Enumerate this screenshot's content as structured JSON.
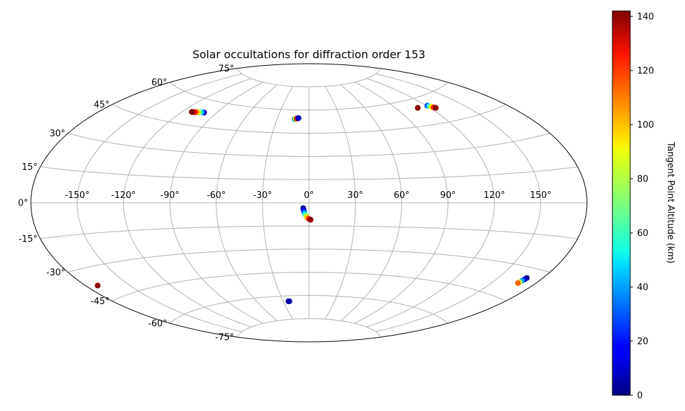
{
  "chart_data": {
    "type": "scatter",
    "projection": "aitoff",
    "title": "Solar occultations for diffraction order 153",
    "grid": true,
    "longitude_ticks": [
      -150,
      -120,
      -90,
      -60,
      -30,
      0,
      30,
      60,
      90,
      120,
      150
    ],
    "longitude_tick_labels": [
      "-150°",
      "-120°",
      "-90°",
      "-60°",
      "-30°",
      "0°",
      "30°",
      "60°",
      "90°",
      "120°",
      "150°"
    ],
    "latitude_ticks": [
      75,
      60,
      45,
      30,
      15,
      0,
      -15,
      -30,
      -45,
      -60,
      -75
    ],
    "latitude_tick_labels": [
      "75°",
      "60°",
      "45°",
      "30°",
      "15°",
      "0°",
      "-15°",
      "-30°",
      "-45°",
      "-60°",
      "-75°"
    ],
    "colorbar": {
      "label": "Tangent Point Altitude (km)",
      "colormap": "jet",
      "range": [
        0,
        142
      ],
      "ticks": [
        0,
        20,
        40,
        60,
        80,
        100,
        120,
        140
      ],
      "tick_labels": [
        "0",
        "20",
        "40",
        "60",
        "80",
        "100",
        "120",
        "140"
      ]
    },
    "series": [
      {
        "points": [
          [
            -101,
            53,
            2
          ],
          [
            -102,
            53,
            15
          ],
          [
            -103,
            53,
            30
          ],
          [
            -104,
            52.9,
            45
          ],
          [
            -105,
            52.8,
            60
          ],
          [
            -106,
            52.7,
            75
          ],
          [
            -107,
            52.6,
            90
          ],
          [
            -108,
            52.5,
            105
          ],
          [
            -109,
            52.4,
            115
          ],
          [
            -110,
            52.3,
            125
          ],
          [
            -111,
            52.2,
            135
          ],
          [
            -112,
            52.1,
            142
          ]
        ]
      },
      {
        "points": [
          [
            -13.5,
            54,
            40
          ],
          [
            -12.5,
            54.2,
            90
          ],
          [
            -11.5,
            54.4,
            110
          ],
          [
            -10.5,
            54.6,
            25
          ],
          [
            -11.5,
            54.5,
            135
          ],
          [
            -10,
            54.7,
            10
          ]
        ]
      },
      {
        "points": [
          [
            110,
            55,
            140
          ],
          [
            121,
            55,
            30
          ],
          [
            122,
            54.5,
            60
          ],
          [
            123,
            54,
            90
          ],
          [
            124,
            53.5,
            120
          ],
          [
            125,
            53,
            140
          ]
        ]
      },
      {
        "points": [
          [
            -3.7,
            -3.5,
            0
          ],
          [
            -3.5,
            -4.5,
            10
          ],
          [
            -3.2,
            -5.5,
            20
          ],
          [
            -2.9,
            -6.5,
            35
          ],
          [
            -2.5,
            -7.5,
            55
          ],
          [
            -1.9,
            -8.5,
            75
          ],
          [
            -1.2,
            -9.5,
            95
          ],
          [
            -0.3,
            -10.3,
            115
          ],
          [
            0.6,
            -10.8,
            130
          ],
          [
            1.1,
            -11,
            140
          ]
        ]
      },
      {
        "points": [
          [
            -172,
            -38,
            140
          ]
        ]
      },
      {
        "points": [
          [
            -24,
            -63.5,
            2
          ],
          [
            -23,
            -63.5,
            5
          ]
        ]
      },
      {
        "points": [
          [
            169.5,
            -34.5,
            0
          ],
          [
            169.2,
            -35.3,
            15
          ],
          [
            168.8,
            -36.1,
            40
          ],
          [
            168.4,
            -36.9,
            80
          ],
          [
            168.2,
            -37.4,
            110
          ]
        ]
      }
    ]
  }
}
